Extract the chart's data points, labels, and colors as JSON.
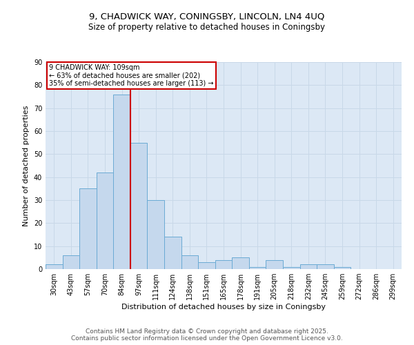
{
  "title1": "9, CHADWICK WAY, CONINGSBY, LINCOLN, LN4 4UQ",
  "title2": "Size of property relative to detached houses in Coningsby",
  "xlabel": "Distribution of detached houses by size in Coningsby",
  "ylabel": "Number of detached properties",
  "categories": [
    "30sqm",
    "43sqm",
    "57sqm",
    "70sqm",
    "84sqm",
    "97sqm",
    "111sqm",
    "124sqm",
    "138sqm",
    "151sqm",
    "165sqm",
    "178sqm",
    "191sqm",
    "205sqm",
    "218sqm",
    "232sqm",
    "245sqm",
    "259sqm",
    "272sqm",
    "286sqm",
    "299sqm"
  ],
  "values": [
    2,
    6,
    35,
    42,
    76,
    55,
    30,
    14,
    6,
    3,
    4,
    5,
    1,
    4,
    1,
    2,
    2,
    1,
    0,
    0,
    0
  ],
  "bar_color": "#c5d8ed",
  "bar_edge_color": "#6aaad4",
  "annotation_box_text": "9 CHADWICK WAY: 109sqm\n← 63% of detached houses are smaller (202)\n35% of semi-detached houses are larger (113) →",
  "annotation_box_color": "#ffffff",
  "annotation_box_edge_color": "#cc0000",
  "vline_x": 4.5,
  "vline_color": "#cc0000",
  "ylim": [
    0,
    90
  ],
  "yticks": [
    0,
    10,
    20,
    30,
    40,
    50,
    60,
    70,
    80,
    90
  ],
  "grid_color": "#c8d8e8",
  "bg_color": "#dce8f5",
  "footer_text": "Contains HM Land Registry data © Crown copyright and database right 2025.\nContains public sector information licensed under the Open Government Licence v3.0.",
  "title1_fontsize": 9.5,
  "title2_fontsize": 8.5,
  "xlabel_fontsize": 8,
  "ylabel_fontsize": 8,
  "tick_fontsize": 7,
  "footer_fontsize": 6.5
}
